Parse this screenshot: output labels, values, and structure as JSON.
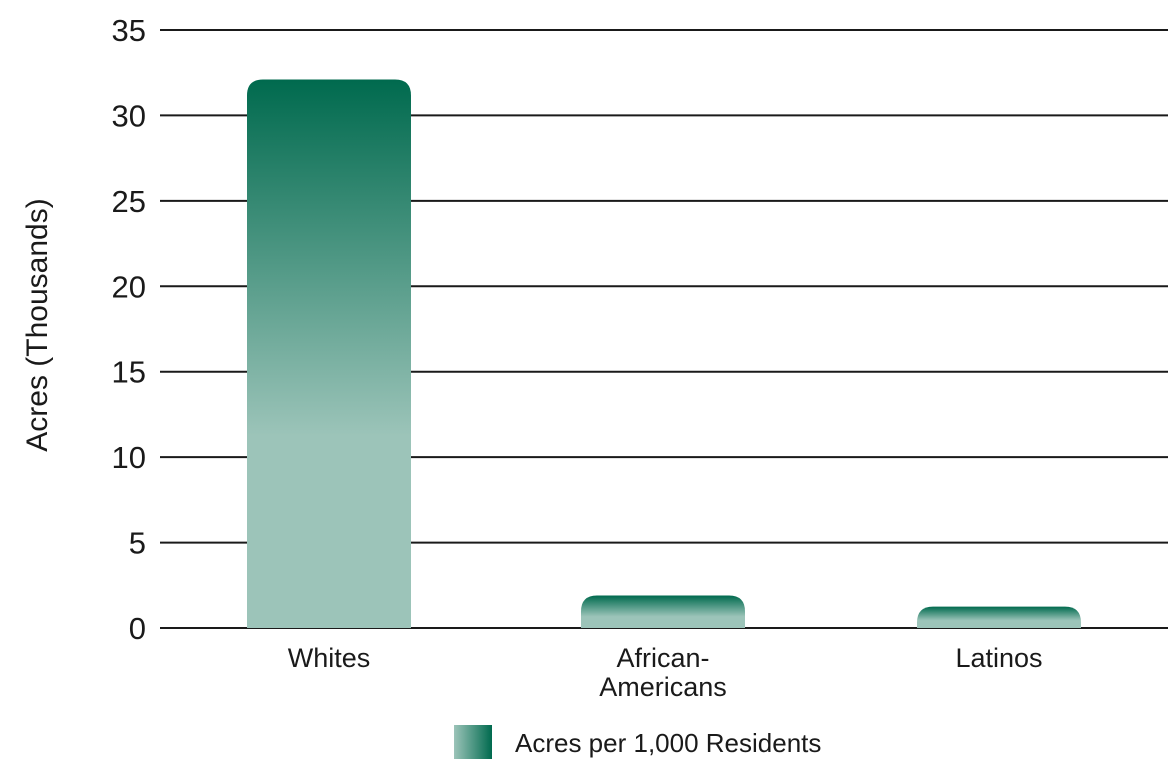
{
  "chart_data": {
    "type": "bar",
    "categories": [
      "Whites",
      "African-Americans",
      "Latinos"
    ],
    "category_lines": [
      [
        "Whites"
      ],
      [
        "African-",
        "Americans"
      ],
      [
        "Latinos"
      ]
    ],
    "values": [
      32.1,
      1.9,
      1.25
    ],
    "series": [
      {
        "name": "Acres per 1,000 Residents",
        "values": [
          32.1,
          1.9,
          1.25
        ]
      }
    ],
    "ylabel": "Acres (Thousands)",
    "xlabel": "",
    "ylim": [
      0,
      35
    ],
    "yticks": [
      0,
      5,
      10,
      15,
      20,
      25,
      30,
      35
    ],
    "grid": true,
    "legend_position": "bottom-center",
    "colors": {
      "bar_dark": "#006a4e",
      "bar_light": "#9cc4b9",
      "grid": "#1a1a1a"
    }
  }
}
